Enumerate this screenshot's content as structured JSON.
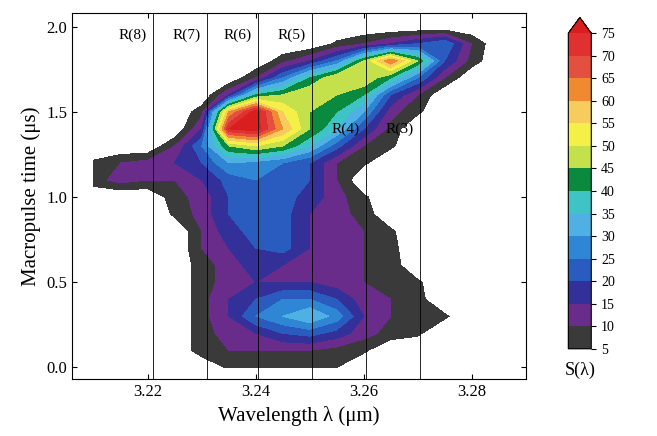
{
  "chart_data": {
    "type": "contour",
    "x_label": "Wavelength λ (μm)",
    "y_label": "Macropulse time (μs)",
    "xlim": [
      3.206,
      3.29
    ],
    "ylim": [
      -0.07,
      2.08
    ],
    "xticks": [
      3.22,
      3.24,
      3.26,
      3.28
    ],
    "yticks": [
      {
        "value": 0,
        "label": "0.0"
      },
      {
        "value": 0.5,
        "label": "0.5"
      },
      {
        "value": 1,
        "label": "1.0"
      },
      {
        "value": 1.5,
        "label": "1.5"
      },
      {
        "value": 2,
        "label": "2.0"
      }
    ],
    "x": [
      3.21,
      3.215,
      3.22,
      3.225,
      3.23,
      3.235,
      3.24,
      3.245,
      3.25,
      3.255,
      3.26,
      3.265,
      3.27,
      3.275,
      3.28,
      3.285
    ],
    "y": [
      0.0,
      0.1,
      0.2,
      0.3,
      0.4,
      0.5,
      0.6,
      0.7,
      0.8,
      0.9,
      1.0,
      1.1,
      1.2,
      1.3,
      1.4,
      1.5,
      1.6,
      1.7,
      1.8,
      1.9,
      2.0
    ],
    "cells": [
      [
        0,
        0,
        0,
        0,
        0,
        6,
        6,
        6,
        6,
        5,
        0,
        0,
        0,
        0,
        0,
        0
      ],
      [
        0,
        0,
        0,
        0,
        8,
        10,
        10,
        10,
        10,
        8,
        6,
        0,
        0,
        0,
        0,
        0
      ],
      [
        0,
        0,
        0,
        0,
        8,
        12,
        15,
        20,
        22,
        18,
        12,
        8,
        6,
        0,
        0,
        0
      ],
      [
        0,
        0,
        0,
        0,
        8,
        15,
        25,
        30,
        35,
        28,
        15,
        10,
        8,
        6,
        0,
        0
      ],
      [
        0,
        0,
        0,
        0,
        8,
        15,
        20,
        25,
        25,
        20,
        12,
        10,
        7,
        0,
        0,
        0
      ],
      [
        0,
        0,
        0,
        0,
        8,
        12,
        15,
        15,
        15,
        12,
        10,
        8,
        6,
        0,
        0,
        0
      ],
      [
        0,
        0,
        0,
        0,
        8,
        12,
        18,
        15,
        12,
        12,
        10,
        8,
        0,
        0,
        0,
        0
      ],
      [
        0,
        0,
        0,
        0,
        10,
        15,
        20,
        22,
        15,
        12,
        10,
        7,
        0,
        0,
        0,
        0
      ],
      [
        0,
        0,
        0,
        0,
        10,
        18,
        22,
        22,
        15,
        12,
        10,
        6,
        0,
        0,
        0,
        0
      ],
      [
        0,
        0,
        0,
        6,
        12,
        20,
        25,
        22,
        15,
        12,
        8,
        0,
        0,
        0,
        0,
        0
      ],
      [
        0,
        0,
        0,
        8,
        12,
        20,
        25,
        22,
        18,
        12,
        6,
        0,
        0,
        0,
        0,
        0
      ],
      [
        8,
        12,
        10,
        10,
        15,
        22,
        25,
        25,
        20,
        10,
        0,
        0,
        0,
        0,
        0,
        0
      ],
      [
        6,
        10,
        12,
        15,
        20,
        30,
        28,
        25,
        20,
        10,
        6,
        0,
        0,
        0,
        0,
        0
      ],
      [
        0,
        0,
        0,
        10,
        25,
        45,
        50,
        45,
        35,
        22,
        10,
        6,
        0,
        0,
        0,
        0
      ],
      [
        0,
        0,
        0,
        0,
        15,
        75,
        78,
        60,
        45,
        35,
        20,
        8,
        0,
        0,
        0,
        0
      ],
      [
        0,
        0,
        0,
        0,
        8,
        60,
        78,
        55,
        45,
        40,
        30,
        12,
        6,
        0,
        0,
        0
      ],
      [
        0,
        0,
        0,
        0,
        0,
        15,
        40,
        45,
        50,
        45,
        40,
        20,
        10,
        0,
        0,
        0
      ],
      [
        0,
        0,
        0,
        0,
        0,
        0,
        10,
        25,
        40,
        50,
        50,
        40,
        25,
        10,
        0,
        0
      ],
      [
        0,
        0,
        0,
        0,
        0,
        0,
        0,
        8,
        15,
        25,
        45,
        65,
        45,
        20,
        8,
        0
      ],
      [
        0,
        0,
        0,
        0,
        0,
        0,
        0,
        0,
        0,
        6,
        10,
        15,
        20,
        25,
        10,
        0
      ],
      [
        0,
        0,
        0,
        0,
        0,
        0,
        0,
        0,
        0,
        0,
        0,
        0,
        0,
        0,
        0,
        0
      ]
    ],
    "colorbar_label": "S(λ)",
    "colorbar_range": [
      5,
      75
    ],
    "colorbar_ticks": [
      5,
      10,
      15,
      20,
      25,
      30,
      35,
      40,
      45,
      50,
      55,
      60,
      65,
      70,
      75
    ],
    "colors": [
      "#3a3a3a",
      "#6a2c8a",
      "#34309a",
      "#2a5cc0",
      "#2f86d4",
      "#4fb0e4",
      "#3ec4c4",
      "#0a8a3e",
      "#c4e04a",
      "#f4f048",
      "#f8cc5c",
      "#f08a30",
      "#e45040",
      "#e03030",
      "#d81e1e"
    ],
    "lines": [
      {
        "x": 3.221,
        "label": "R(8)",
        "label_y": 1.95
      },
      {
        "x": 3.231,
        "label": "R(7)",
        "label_y": 1.95
      },
      {
        "x": 3.2405,
        "label": "R(6)",
        "label_y": 1.95
      },
      {
        "x": 3.2505,
        "label": "R(5)",
        "label_y": 1.95
      },
      {
        "x": 3.2605,
        "label": "R(4)",
        "label_y": 1.4
      },
      {
        "x": 3.2705,
        "label": "R(3)",
        "label_y": 1.4
      }
    ]
  }
}
